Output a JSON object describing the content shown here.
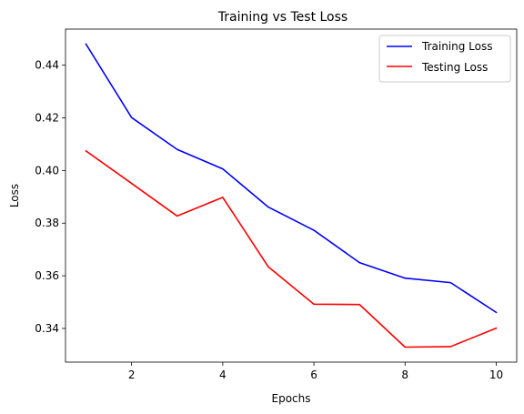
{
  "chart_data": {
    "type": "line",
    "title": "Training vs Test Loss",
    "xlabel": "Epochs",
    "ylabel": "Loss",
    "x": [
      1,
      2,
      3,
      4,
      5,
      6,
      7,
      8,
      9,
      10
    ],
    "series": [
      {
        "name": "Training Loss",
        "color": "#0000ff",
        "values": [
          0.448,
          0.4201,
          0.408,
          0.4006,
          0.3861,
          0.3773,
          0.365,
          0.3591,
          0.3574,
          0.3461
        ]
      },
      {
        "name": "Testing Loss",
        "color": "#ff0000",
        "values": [
          0.4074,
          0.3951,
          0.3827,
          0.3898,
          0.3634,
          0.3492,
          0.3491,
          0.3329,
          0.3331,
          0.3401
        ]
      }
    ],
    "xlim": [
      0.55,
      10.45
    ],
    "ylim": [
      0.3272,
      0.4537
    ],
    "xticks": [
      2,
      4,
      6,
      8,
      10
    ],
    "xtick_labels": [
      "2",
      "4",
      "6",
      "8",
      "10"
    ],
    "yticks": [
      0.34,
      0.36,
      0.38,
      0.4,
      0.42,
      0.44
    ],
    "ytick_labels": [
      "0.34",
      "0.36",
      "0.38",
      "0.40",
      "0.42",
      "0.44"
    ],
    "grid": false,
    "legend_position": "top-right"
  }
}
